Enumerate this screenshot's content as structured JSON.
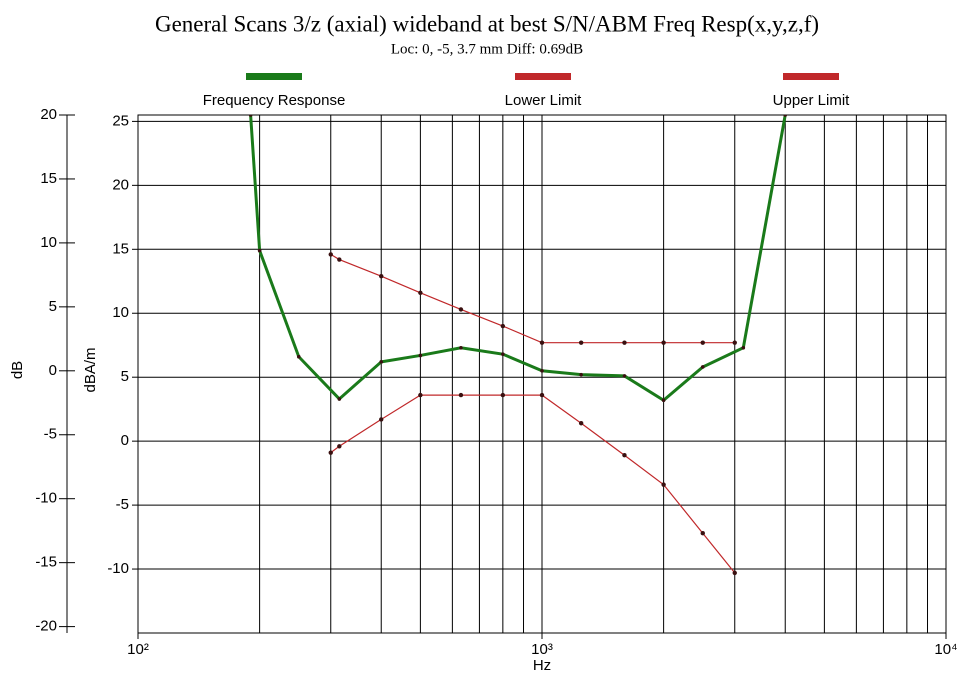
{
  "chart_data": {
    "type": "line",
    "title": "General Scans 3/z (axial) wideband at best S/N/ABM Freq Resp(x,y,z,f)",
    "subtitle": "Loc: 0, -5, 3.7 mm Diff: 0.69dB",
    "xlabel": "Hz",
    "ylabel": "dBA/m",
    "y2label": "dB",
    "log_x": true,
    "grid": true,
    "xlim": [
      100,
      10000
    ],
    "xticks": [
      {
        "value": 100,
        "label": "10²"
      },
      {
        "value": 1000,
        "label": "10³"
      },
      {
        "value": 10000,
        "label": "10⁴"
      }
    ],
    "xgrid": [
      200,
      300,
      400,
      500,
      600,
      700,
      800,
      900,
      2000,
      3000,
      4000,
      5000,
      6000,
      7000,
      8000,
      9000
    ],
    "ylim": [
      -15,
      25.5
    ],
    "yticks": [
      -10,
      -5,
      0,
      5,
      10,
      15,
      20,
      25
    ],
    "y2lim": [
      -20.5,
      20
    ],
    "y2ticks": [
      -20,
      -15,
      -10,
      -5,
      0,
      5,
      10,
      15,
      20
    ],
    "series": [
      {
        "name": "Frequency Response",
        "color": "#1a7a1a",
        "x": [
          190,
          200,
          250,
          315,
          400,
          500,
          630,
          800,
          1000,
          1250,
          1600,
          2000,
          2500,
          3150,
          4000
        ],
        "values": [
          25.5,
          14.9,
          6.6,
          3.3,
          6.2,
          6.7,
          7.3,
          6.8,
          5.5,
          5.2,
          5.1,
          3.2,
          5.8,
          7.3,
          25.5
        ]
      },
      {
        "name": "Lower Limit",
        "color": "#c0282a",
        "x": [
          300,
          315,
          400,
          500,
          630,
          800,
          1000,
          1250,
          1600,
          2000,
          2500,
          3000
        ],
        "values": [
          -0.9,
          -0.4,
          1.7,
          3.6,
          3.6,
          3.6,
          3.6,
          1.4,
          -1.1,
          -3.4,
          -7.2,
          -10.3
        ]
      },
      {
        "name": "Upper Limit",
        "color": "#c0282a",
        "x": [
          300,
          315,
          400,
          500,
          630,
          800,
          1000,
          1250,
          1600,
          2000,
          2500,
          3000
        ],
        "values": [
          14.6,
          14.2,
          12.9,
          11.6,
          10.3,
          9.0,
          7.7,
          7.7,
          7.7,
          7.7,
          7.7,
          7.7
        ]
      }
    ]
  }
}
